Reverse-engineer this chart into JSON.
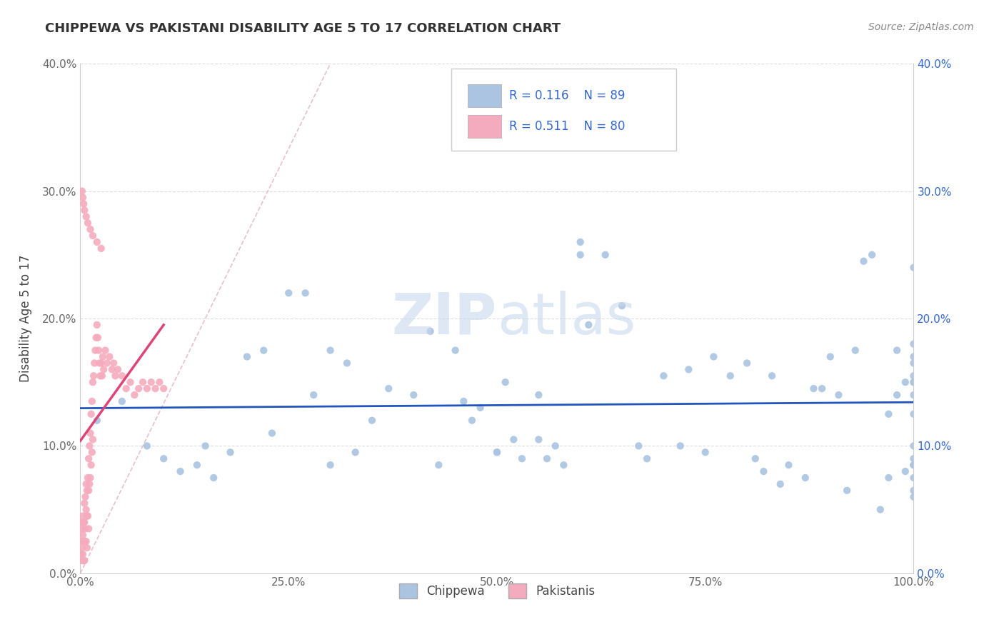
{
  "title": "CHIPPEWA VS PAKISTANI DISABILITY AGE 5 TO 17 CORRELATION CHART",
  "source_text": "Source: ZipAtlas.com",
  "ylabel": "Disability Age 5 to 17",
  "xlim": [
    0,
    1.0
  ],
  "ylim": [
    0,
    0.4
  ],
  "xticks": [
    0.0,
    0.25,
    0.5,
    0.75,
    1.0
  ],
  "xtick_labels": [
    "0.0%",
    "25.0%",
    "50.0%",
    "75.0%",
    "100.0%"
  ],
  "yticks": [
    0.0,
    0.1,
    0.2,
    0.3,
    0.4
  ],
  "ytick_labels": [
    "0.0%",
    "10.0%",
    "20.0%",
    "30.0%",
    "40.0%"
  ],
  "chippewa_R": 0.116,
  "chippewa_N": 89,
  "pakistani_R": 0.511,
  "pakistani_N": 80,
  "chippewa_color": "#aac4e2",
  "pakistani_color": "#f5abbe",
  "chippewa_line_color": "#2255bb",
  "pakistani_line_color": "#dd4477",
  "legend_R_color": "#3366cc",
  "watermark_zip": "ZIP",
  "watermark_atlas": "atlas",
  "background_color": "#ffffff",
  "grid_color": "#dddddd",
  "dashed_line_color": "#e8c0c8",
  "chippewa_x": [
    0.02,
    0.05,
    0.08,
    0.1,
    0.12,
    0.14,
    0.15,
    0.16,
    0.18,
    0.2,
    0.22,
    0.23,
    0.25,
    0.27,
    0.28,
    0.3,
    0.3,
    0.32,
    0.33,
    0.35,
    0.37,
    0.4,
    0.42,
    0.43,
    0.45,
    0.46,
    0.47,
    0.48,
    0.5,
    0.5,
    0.51,
    0.52,
    0.53,
    0.55,
    0.55,
    0.56,
    0.57,
    0.58,
    0.6,
    0.6,
    0.61,
    0.63,
    0.65,
    0.67,
    0.68,
    0.7,
    0.72,
    0.73,
    0.75,
    0.76,
    0.78,
    0.8,
    0.81,
    0.82,
    0.83,
    0.84,
    0.85,
    0.87,
    0.88,
    0.89,
    0.9,
    0.91,
    0.92,
    0.93,
    0.94,
    0.95,
    0.96,
    0.97,
    0.97,
    0.98,
    0.98,
    0.99,
    0.99,
    1.0,
    1.0,
    1.0,
    1.0,
    1.0,
    1.0,
    1.0,
    1.0,
    1.0,
    1.0,
    1.0,
    1.0,
    1.0,
    1.0,
    1.0,
    1.0
  ],
  "chippewa_y": [
    0.12,
    0.135,
    0.1,
    0.09,
    0.08,
    0.085,
    0.1,
    0.075,
    0.095,
    0.17,
    0.175,
    0.11,
    0.22,
    0.22,
    0.14,
    0.175,
    0.085,
    0.165,
    0.095,
    0.12,
    0.145,
    0.14,
    0.19,
    0.085,
    0.175,
    0.135,
    0.12,
    0.13,
    0.095,
    0.095,
    0.15,
    0.105,
    0.09,
    0.105,
    0.14,
    0.09,
    0.1,
    0.085,
    0.26,
    0.25,
    0.195,
    0.25,
    0.21,
    0.1,
    0.09,
    0.155,
    0.1,
    0.16,
    0.095,
    0.17,
    0.155,
    0.165,
    0.09,
    0.08,
    0.155,
    0.07,
    0.085,
    0.075,
    0.145,
    0.145,
    0.17,
    0.14,
    0.065,
    0.175,
    0.245,
    0.25,
    0.05,
    0.125,
    0.075,
    0.14,
    0.175,
    0.15,
    0.08,
    0.18,
    0.14,
    0.1,
    0.065,
    0.15,
    0.06,
    0.15,
    0.09,
    0.085,
    0.085,
    0.125,
    0.24,
    0.17,
    0.155,
    0.075,
    0.165
  ],
  "pakistani_x": [
    0.001,
    0.001,
    0.001,
    0.002,
    0.002,
    0.002,
    0.003,
    0.003,
    0.003,
    0.004,
    0.004,
    0.004,
    0.005,
    0.005,
    0.005,
    0.005,
    0.006,
    0.006,
    0.007,
    0.007,
    0.007,
    0.008,
    0.008,
    0.008,
    0.009,
    0.009,
    0.01,
    0.01,
    0.01,
    0.011,
    0.011,
    0.012,
    0.012,
    0.013,
    0.013,
    0.014,
    0.014,
    0.015,
    0.015,
    0.016,
    0.017,
    0.018,
    0.019,
    0.02,
    0.021,
    0.022,
    0.023,
    0.024,
    0.025,
    0.026,
    0.027,
    0.028,
    0.03,
    0.032,
    0.035,
    0.038,
    0.04,
    0.042,
    0.045,
    0.05,
    0.055,
    0.06,
    0.065,
    0.07,
    0.075,
    0.08,
    0.085,
    0.09,
    0.095,
    0.1,
    0.002,
    0.003,
    0.004,
    0.005,
    0.007,
    0.009,
    0.012,
    0.015,
    0.02,
    0.025
  ],
  "pakistani_y": [
    0.04,
    0.025,
    0.015,
    0.035,
    0.02,
    0.01,
    0.045,
    0.03,
    0.015,
    0.04,
    0.025,
    0.01,
    0.055,
    0.04,
    0.025,
    0.01,
    0.06,
    0.035,
    0.07,
    0.05,
    0.025,
    0.065,
    0.045,
    0.02,
    0.075,
    0.045,
    0.09,
    0.065,
    0.035,
    0.1,
    0.07,
    0.11,
    0.075,
    0.125,
    0.085,
    0.135,
    0.095,
    0.15,
    0.105,
    0.155,
    0.165,
    0.175,
    0.185,
    0.195,
    0.185,
    0.175,
    0.165,
    0.155,
    0.165,
    0.155,
    0.17,
    0.16,
    0.175,
    0.165,
    0.17,
    0.16,
    0.165,
    0.155,
    0.16,
    0.155,
    0.145,
    0.15,
    0.14,
    0.145,
    0.15,
    0.145,
    0.15,
    0.145,
    0.15,
    0.145,
    0.3,
    0.295,
    0.29,
    0.285,
    0.28,
    0.275,
    0.27,
    0.265,
    0.26,
    0.255
  ]
}
